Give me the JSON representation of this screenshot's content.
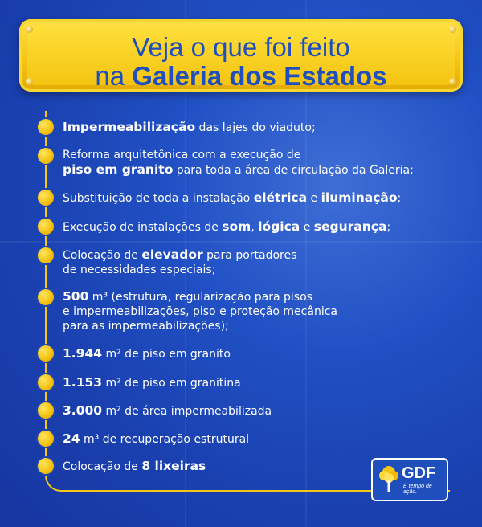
{
  "header": {
    "title_line1": "Veja o que foi feito",
    "title_line2_prefix": "na ",
    "title_line2_bold": "Galeria dos Estados"
  },
  "items": [
    {
      "bold": "Impermeabilização",
      "text": " das lajes do viaduto;"
    },
    {
      "line1": "Reforma arquitetônica com a execução de",
      "bold": "piso em granito",
      "text": " para toda a área de circulação da Galeria;"
    },
    {
      "pre": "Substituição de toda a instalação ",
      "bold1": "elétrica",
      "mid": " e ",
      "bold2": "iluminação",
      "post": ";"
    },
    {
      "pre": "Execução de instalações de ",
      "bold1": "som",
      "mid1": ", ",
      "bold2": "lógica",
      "mid2": " e ",
      "bold3": "segurança",
      "post": ";"
    },
    {
      "pre": "Colocação de ",
      "bold": "elevador",
      "post": " para portadores",
      "line2": "de necessidades especiais;"
    },
    {
      "bold": "500",
      "text": "  m³ (estrutura, regularização para pisos",
      "line2": "e impermeabilizações, piso e proteção mecânica",
      "line3": "para as impermeabilizações);"
    },
    {
      "bold": "1.944",
      "text": " m² de piso em granito"
    },
    {
      "bold": "1.153",
      "text": " m² de piso em granitina"
    },
    {
      "bold": "3.000",
      "text": " m² de área impermeabilizada"
    },
    {
      "bold": "24",
      "text": " m³ de recuperação estrutural"
    },
    {
      "pre": "Colocação de ",
      "bold": "8 lixeiras"
    }
  ],
  "logo": {
    "name": "GDF",
    "tagline": "É tempo de ação."
  },
  "colors": {
    "background": "#2050c4",
    "accent": "#f5c614",
    "title_text": "#1f4fbd",
    "body_text": "#ffffff"
  }
}
